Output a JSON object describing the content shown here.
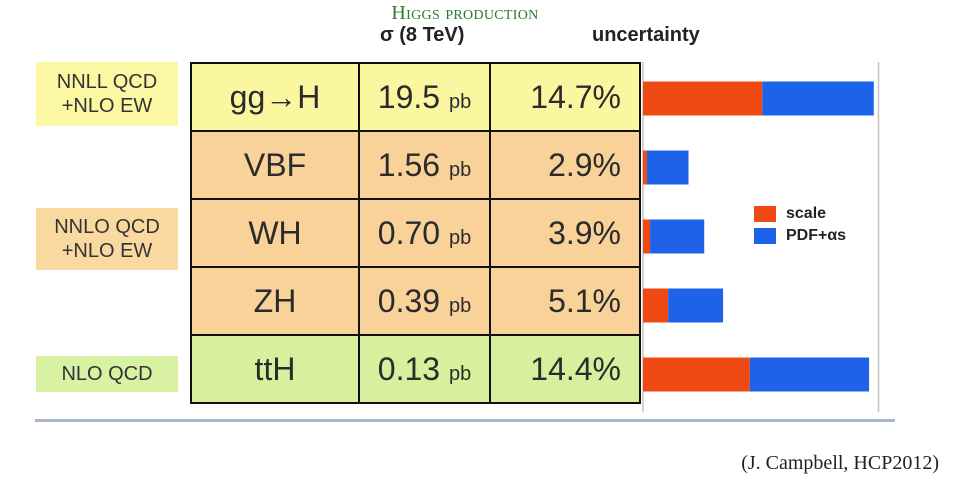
{
  "title": "Higgs production",
  "headers": {
    "cross_section": "σ (8 TeV)",
    "uncertainty": "uncertainty"
  },
  "order_tags": {
    "yellow": "NNLL QCD\n+NLO EW",
    "orange": "NNLO QCD\n+NLO EW",
    "green": "NLO QCD"
  },
  "rows": [
    {
      "process": "gg→H",
      "xsec": "19.5",
      "unit": "pb",
      "uncertainty": "14.7%"
    },
    {
      "process": "VBF",
      "xsec": "1.56",
      "unit": "pb",
      "uncertainty": "2.9%"
    },
    {
      "process": "WH",
      "xsec": "0.70",
      "unit": "pb",
      "uncertainty": "3.9%"
    },
    {
      "process": "ZH",
      "xsec": "0.39",
      "unit": "pb",
      "uncertainty": "5.1%"
    },
    {
      "process": "ttH",
      "xsec": "0.13",
      "unit": "pb",
      "uncertainty": "14.4%"
    }
  ],
  "legend": {
    "scale": "scale",
    "pdf": "PDF+αs"
  },
  "colors": {
    "scale": "#f04a14",
    "pdf": "#1e62e8",
    "axis": "#c4c4c4"
  },
  "citation": "(J. Campbell, HCP2012)",
  "chart_data": {
    "type": "bar",
    "orientation": "horizontal",
    "stacked": true,
    "title": "uncertainty",
    "categories": [
      "gg→H",
      "VBF",
      "WH",
      "ZH",
      "ttH"
    ],
    "series": [
      {
        "name": "scale",
        "values": [
          7.6,
          0.25,
          0.45,
          1.6,
          6.8
        ]
      },
      {
        "name": "PDF+αs",
        "values": [
          7.1,
          2.65,
          3.45,
          3.5,
          7.6
        ]
      }
    ],
    "xlim": [
      0,
      15
    ],
    "units": "%",
    "legend_position": "right"
  }
}
